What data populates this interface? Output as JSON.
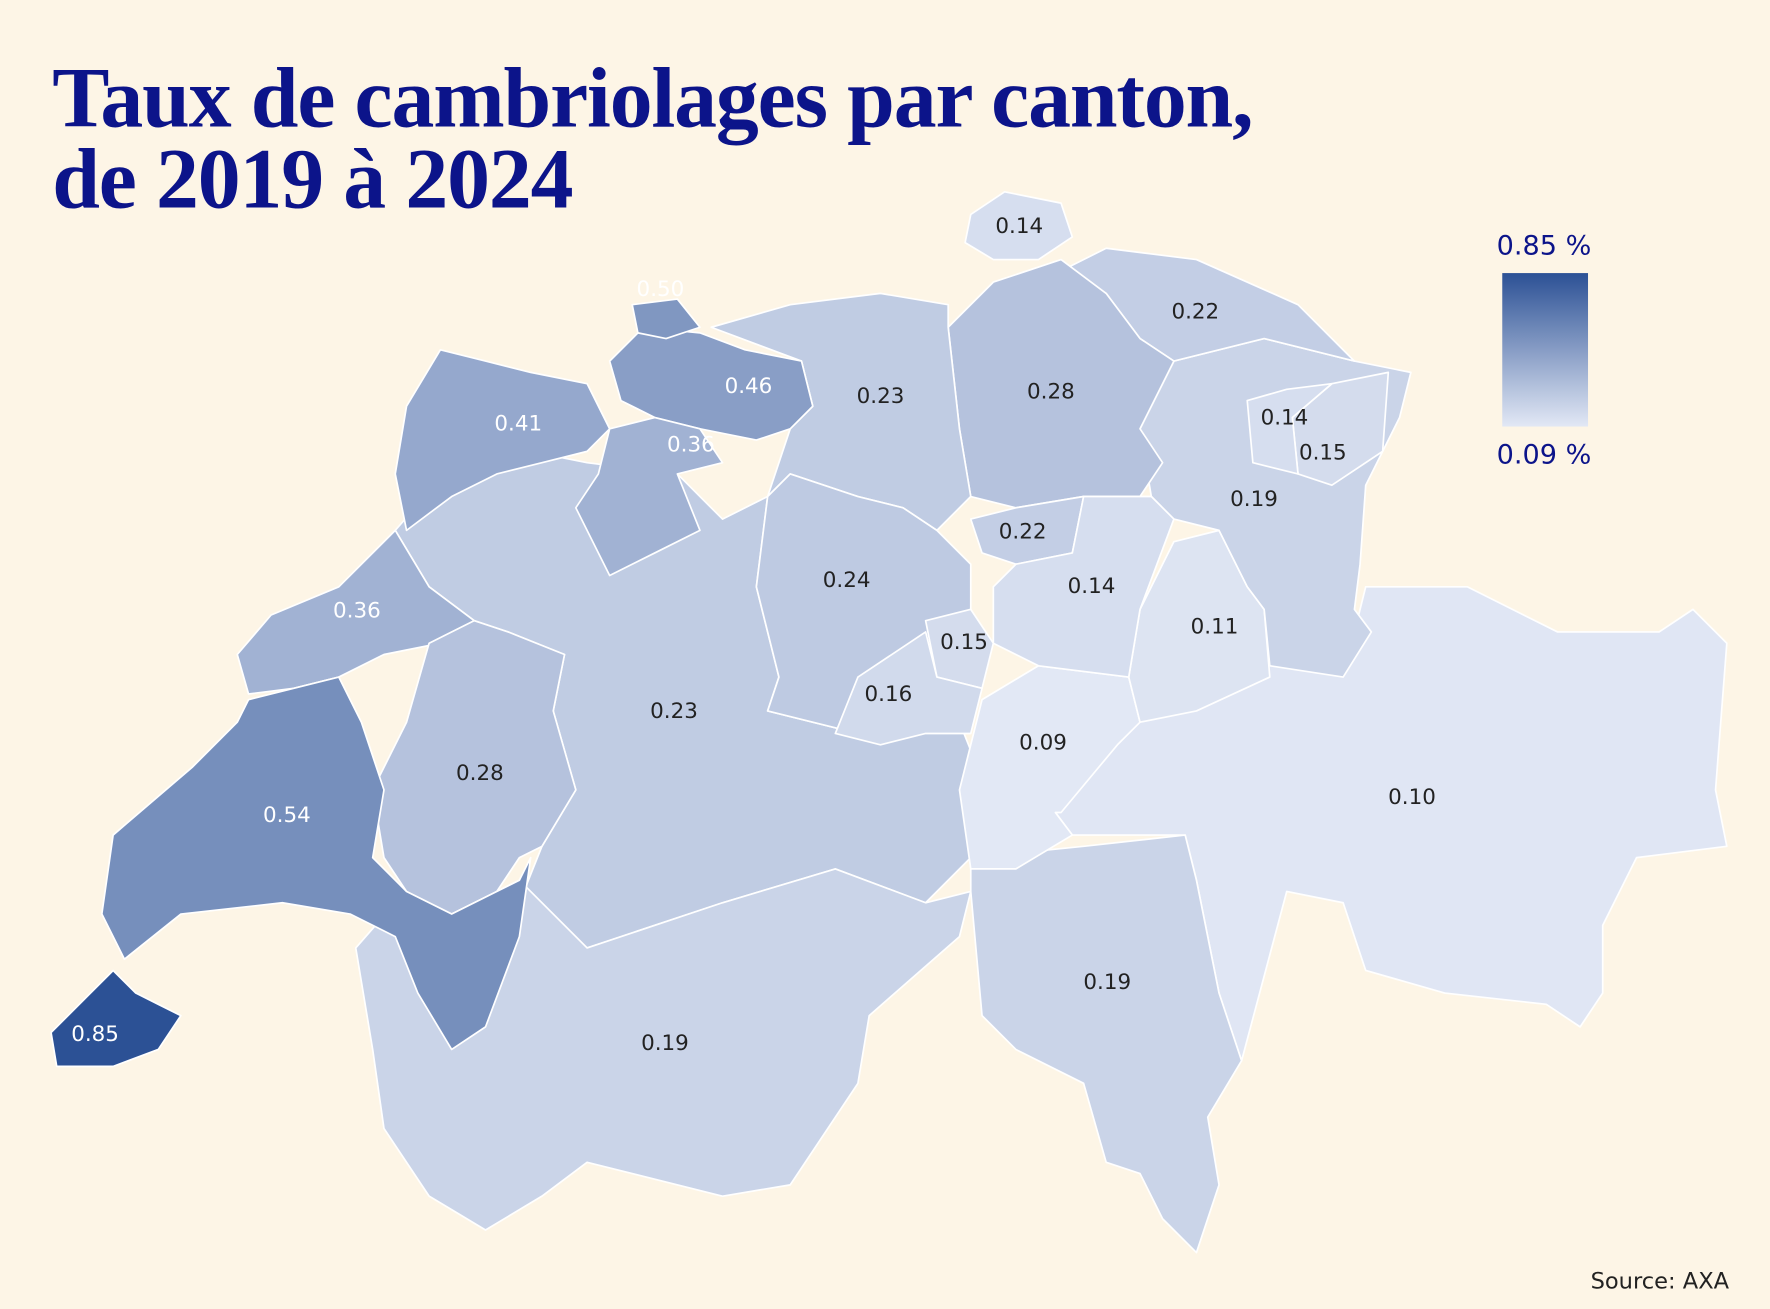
{
  "chart_data": {
    "type": "choropleth",
    "title": [
      "Taux de cambriolages par canton,",
      "de 2019 à 2024"
    ],
    "values": [
      0.14,
      0.5,
      0.22,
      0.46,
      0.23,
      0.28,
      0.41,
      0.36,
      0.14,
      0.15,
      0.19,
      0.22,
      0.24,
      0.14,
      0.36,
      0.11,
      0.15,
      0.16,
      0.23,
      0.09,
      0.28,
      0.54,
      0.1,
      0.19,
      0.85,
      0.19
    ],
    "value_labels": [
      "0.14",
      "0.50",
      "0.22",
      "0.46",
      "0.23",
      "0.28",
      "0.41",
      "0.36",
      "0.14",
      "0.15",
      "0.19",
      "0.22",
      "0.24",
      "0.14",
      "0.36",
      "0.11",
      "0.15",
      "0.16",
      "0.23",
      "0.09",
      "0.28",
      "0.54",
      "0.10",
      "0.19",
      "0.85",
      "0.19"
    ],
    "legend": {
      "max": {
        "value": 0.85,
        "label": "0.85 %"
      },
      "min": {
        "value": 0.09,
        "label": "0.09 %"
      }
    },
    "color_high": "#2c5195",
    "color_low": "#e2e8f5",
    "source": "Source: AXA"
  }
}
